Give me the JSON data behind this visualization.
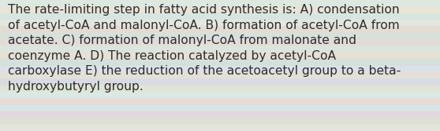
{
  "text": "The rate-limiting step in fatty acid synthesis is: A) condensation of acetyl-CoA and malonyl-CoA. B) formation of acetyl-CoA from acetate. C) formation of malonyl-CoA from malonate and coenzyme A. D) The reaction catalyzed by acetyl-CoA carboxylase E) the reduction of the acetoacetyl group to a beta-hydroxybutyryl group.",
  "wrapped_lines": [
    "The rate-limiting step in fatty acid synthesis is: A) condensation",
    "of acetyl-CoA and malonyl-CoA. B) formation of acetyl-CoA from",
    "acetate. C) formation of malonyl-CoA from malonate and",
    "coenzyme A. D) The reaction catalyzed by acetyl-CoA",
    "carboxylase E) the reduction of the acetoacetyl group to a beta-",
    "hydroxybutyryl group."
  ],
  "bg_stripe_colors": [
    "#dce8e0",
    "#e8e4d8",
    "#d8e4e0",
    "#e0e8e0",
    "#e4dcd4",
    "#d8e0dc",
    "#e0dcd8",
    "#dce4dc",
    "#e8e0d4",
    "#d4e0dc",
    "#dce0e8",
    "#e4e0d8",
    "#d8dce0",
    "#e0e4d8",
    "#dce8e4",
    "#e8dcd8",
    "#d8e4e4",
    "#e0d8dc",
    "#dce0d4",
    "#e4e4dc"
  ],
  "text_color": "#2d2d2d",
  "font_size": 11.2,
  "fig_width": 5.58,
  "fig_height": 1.67,
  "dpi": 100
}
